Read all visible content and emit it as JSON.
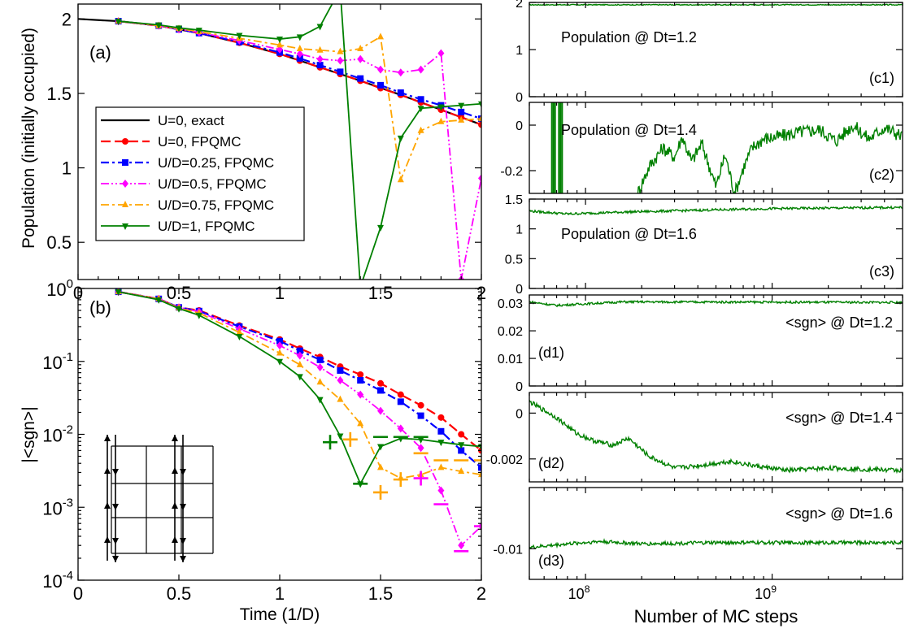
{
  "colors": {
    "exact": "#000000",
    "u0": "#ff0000",
    "u025": "#0000ff",
    "u05": "#ff00ff",
    "u075": "#ffa500",
    "u1": "#008000",
    "trace": "#008000"
  },
  "chart_data": [
    {
      "id": "a",
      "type": "line",
      "panel_label": "(a)",
      "ylabel": "Population (initially occupied)",
      "xlabel": "",
      "xlim": [
        0,
        2
      ],
      "ylim": [
        0.25,
        2.1
      ],
      "xticks": [
        "0",
        "0.5",
        "1",
        "1.5",
        "2"
      ],
      "yticks": [
        "0.5",
        "1",
        "1.5",
        "2"
      ],
      "legend_position": "left-middle",
      "legend": [
        {
          "label": "U=0, exact",
          "series": "exact"
        },
        {
          "label": "U=0, FPQMC",
          "series": "u0"
        },
        {
          "label": "U/D=0.25, FPQMC",
          "series": "u025"
        },
        {
          "label": "U/D=0.5, FPQMC",
          "series": "u05"
        },
        {
          "label": "U/D=0.75, FPQMC",
          "series": "u075"
        },
        {
          "label": "U/D=1, FPQMC",
          "series": "u1"
        }
      ],
      "series": [
        {
          "key": "exact",
          "x": [
            0,
            0.2,
            0.4,
            0.6,
            0.8,
            1.0,
            1.2,
            1.4,
            1.6,
            1.8,
            2.0
          ],
          "y": [
            2.0,
            1.985,
            1.955,
            1.905,
            1.84,
            1.765,
            1.675,
            1.585,
            1.49,
            1.39,
            1.29
          ]
        },
        {
          "key": "u0",
          "x": [
            0.2,
            0.4,
            0.5,
            0.6,
            0.8,
            1.0,
            1.1,
            1.2,
            1.3,
            1.4,
            1.5,
            1.6,
            1.7,
            1.8,
            1.9,
            2.0
          ],
          "y": [
            1.985,
            1.955,
            1.93,
            1.905,
            1.84,
            1.765,
            1.72,
            1.675,
            1.63,
            1.585,
            1.535,
            1.49,
            1.44,
            1.39,
            1.34,
            1.29
          ]
        },
        {
          "key": "u025",
          "x": [
            0.2,
            0.4,
            0.5,
            0.6,
            0.8,
            1.0,
            1.1,
            1.2,
            1.3,
            1.4,
            1.5,
            1.6,
            1.7,
            1.8,
            1.9,
            2.0
          ],
          "y": [
            1.985,
            1.955,
            1.93,
            1.905,
            1.845,
            1.775,
            1.735,
            1.69,
            1.645,
            1.6,
            1.555,
            1.505,
            1.46,
            1.42,
            1.375,
            1.33
          ]
        },
        {
          "key": "u05",
          "x": [
            0.2,
            0.4,
            0.5,
            0.6,
            0.8,
            1.0,
            1.1,
            1.2,
            1.3,
            1.4,
            1.5,
            1.6,
            1.7,
            1.8,
            1.9,
            2.0
          ],
          "y": [
            1.985,
            1.955,
            1.93,
            1.91,
            1.855,
            1.795,
            1.765,
            1.73,
            1.72,
            1.73,
            1.66,
            1.64,
            1.66,
            1.77,
            0.25,
            0.93
          ]
        },
        {
          "key": "u075",
          "x": [
            0.2,
            0.4,
            0.5,
            0.6,
            0.8,
            1.0,
            1.1,
            1.2,
            1.3,
            1.4,
            1.5,
            1.6,
            1.7,
            1.8,
            1.9,
            2.0
          ],
          "y": [
            1.985,
            1.955,
            1.935,
            1.915,
            1.87,
            1.825,
            1.8,
            1.79,
            1.78,
            1.8,
            1.88,
            0.92,
            1.25,
            1.31,
            1.32,
            1.33
          ]
        },
        {
          "key": "u1",
          "x": [
            0.2,
            0.4,
            0.5,
            0.6,
            0.8,
            1.0,
            1.1,
            1.2,
            1.3,
            1.4,
            1.5,
            1.6,
            1.7,
            1.8,
            1.9,
            2.0
          ],
          "y": [
            1.985,
            1.96,
            1.94,
            1.925,
            1.89,
            1.865,
            1.88,
            1.95,
            2.2,
            0.2,
            0.6,
            1.2,
            1.4,
            1.41,
            1.42,
            1.43
          ]
        }
      ]
    },
    {
      "id": "b",
      "type": "line",
      "panel_label": "(b)",
      "ylabel": "|<sgn>|",
      "xlabel": "Time (1/D)",
      "xlim": [
        0,
        2
      ],
      "ylim_log10": [
        -4,
        0
      ],
      "xticks": [
        "0",
        "0.5",
        "1",
        "1.5",
        "2"
      ],
      "yticks": [
        {
          "base": "10",
          "exp": "-4"
        },
        {
          "base": "10",
          "exp": "-3"
        },
        {
          "base": "10",
          "exp": "-2"
        },
        {
          "base": "10",
          "exp": "-1"
        },
        {
          "base": "10",
          "exp": "0"
        }
      ],
      "series": [
        {
          "key": "u0",
          "x": [
            0.2,
            0.4,
            0.5,
            0.6,
            0.8,
            1.0,
            1.1,
            1.2,
            1.3,
            1.4,
            1.5,
            1.6,
            1.7,
            1.8,
            1.9,
            2.0
          ],
          "y": [
            0.9,
            0.72,
            0.55,
            0.5,
            0.31,
            0.2,
            0.15,
            0.115,
            0.085,
            0.066,
            0.05,
            0.035,
            0.025,
            0.017,
            0.01,
            0.006
          ]
        },
        {
          "key": "u025",
          "x": [
            0.2,
            0.4,
            0.5,
            0.6,
            0.8,
            1.0,
            1.1,
            1.2,
            1.3,
            1.4,
            1.5,
            1.6,
            1.7,
            1.8,
            1.9,
            2.0
          ],
          "y": [
            0.9,
            0.72,
            0.55,
            0.49,
            0.3,
            0.19,
            0.14,
            0.105,
            0.075,
            0.055,
            0.04,
            0.028,
            0.018,
            0.011,
            0.006,
            0.0035
          ]
        },
        {
          "key": "u05",
          "x": [
            0.2,
            0.4,
            0.5,
            0.6,
            0.8,
            1.0,
            1.1,
            1.2,
            1.3,
            1.4,
            1.5,
            1.6,
            1.7,
            1.8,
            1.9,
            2.0
          ],
          "y": [
            0.9,
            0.72,
            0.55,
            0.48,
            0.28,
            0.165,
            0.12,
            0.083,
            0.055,
            0.035,
            0.021,
            0.012,
            0.0065,
            0.0017,
            0.0003,
            0.00055
          ]
        },
        {
          "key": "u075",
          "x": [
            0.2,
            0.4,
            0.5,
            0.6,
            0.8,
            1.0,
            1.1,
            1.2,
            1.3,
            1.4,
            1.5,
            1.6,
            1.7,
            1.8,
            1.9,
            2.0
          ],
          "y": [
            0.9,
            0.72,
            0.54,
            0.46,
            0.25,
            0.13,
            0.09,
            0.052,
            0.03,
            0.014,
            0.0035,
            0.0025,
            0.0028,
            0.0035,
            0.0031,
            0.0028
          ]
        },
        {
          "key": "u1",
          "x": [
            0.2,
            0.4,
            0.5,
            0.6,
            0.8,
            1.0,
            1.1,
            1.2,
            1.3,
            1.4,
            1.5,
            1.6,
            1.7,
            1.8,
            1.9,
            2.0
          ],
          "y": [
            0.9,
            0.7,
            0.53,
            0.43,
            0.22,
            0.1,
            0.062,
            0.03,
            0.0095,
            0.0021,
            0.0068,
            0.0088,
            0.0085,
            0.0078,
            0.0072,
            0.0068
          ]
        }
      ],
      "sign_markers": [
        {
          "sign": "+",
          "x": 1.25,
          "y": 0.0078,
          "series": "u1"
        },
        {
          "sign": "-",
          "x": 1.4,
          "y": 0.0021,
          "series": "u1"
        },
        {
          "sign": "-",
          "x": 1.5,
          "y": 0.0092,
          "series": "u1"
        },
        {
          "sign": "-",
          "x": 1.6,
          "y": 0.0092,
          "series": "u1"
        },
        {
          "sign": "-",
          "x": 1.7,
          "y": 0.0092,
          "series": "u1"
        },
        {
          "sign": "+",
          "x": 1.35,
          "y": 0.0085,
          "series": "u075"
        },
        {
          "sign": "+",
          "x": 1.5,
          "y": 0.0016,
          "series": "u075"
        },
        {
          "sign": "+",
          "x": 1.6,
          "y": 0.0024,
          "series": "u075"
        },
        {
          "sign": "-",
          "x": 1.7,
          "y": 0.0055,
          "series": "u075"
        },
        {
          "sign": "-",
          "x": 1.8,
          "y": 0.0044,
          "series": "u075"
        },
        {
          "sign": "-",
          "x": 1.9,
          "y": 0.0044,
          "series": "u075"
        },
        {
          "sign": "-",
          "x": 2.0,
          "y": 0.0044,
          "series": "u075"
        },
        {
          "sign": "+",
          "x": 1.7,
          "y": 0.0025,
          "series": "u05"
        },
        {
          "sign": "-",
          "x": 1.8,
          "y": 0.0011,
          "series": "u05"
        },
        {
          "sign": "-",
          "x": 1.9,
          "y": 0.00025,
          "series": "u05"
        },
        {
          "sign": "-",
          "x": 2.0,
          "y": 0.00055,
          "series": "u05"
        }
      ]
    },
    {
      "id": "c1",
      "type": "line",
      "panel_label": "(c1)",
      "annotation": "Population @ Dt=1.2",
      "ylim": [
        0,
        2
      ],
      "yticks": [
        "0",
        "1",
        "2"
      ],
      "xscale": "log",
      "xlim": [
        50000000,
        5000000000
      ],
      "trace": {
        "base": 1.95,
        "noise": 0.01,
        "segments": []
      }
    },
    {
      "id": "c2",
      "type": "line",
      "panel_label": "(c2)",
      "annotation": "Population @ Dt=1.4",
      "ylim": [
        -0.3,
        0.1
      ],
      "yticks": [
        "0",
        "-0.2"
      ],
      "xscale": "log",
      "xlim": [
        50000000,
        5000000000
      ],
      "trace": {
        "start": 190000000,
        "points": [
          [
            190000000,
            -0.3
          ],
          [
            220000000,
            -0.18
          ],
          [
            260000000,
            -0.1
          ],
          [
            300000000,
            -0.14
          ],
          [
            330000000,
            -0.05
          ],
          [
            370000000,
            -0.16
          ],
          [
            420000000,
            -0.08
          ],
          [
            500000000,
            -0.27
          ],
          [
            560000000,
            -0.13
          ],
          [
            630000000,
            -0.3
          ],
          [
            700000000,
            -0.19
          ],
          [
            780000000,
            -0.1
          ],
          [
            900000000,
            -0.06
          ],
          [
            1100000000,
            -0.05
          ],
          [
            1400000000,
            -0.03
          ],
          [
            1800000000,
            -0.02
          ],
          [
            2200000000,
            -0.07
          ],
          [
            2700000000,
            0.0
          ],
          [
            3300000000,
            -0.06
          ],
          [
            4000000000,
            -0.01
          ],
          [
            5000000000,
            -0.05
          ]
        ],
        "noise": 0.03,
        "spikes": [
          [
            66000000,
            -0.3,
            0.1
          ],
          [
            72000000,
            -0.3,
            0.1
          ]
        ]
      }
    },
    {
      "id": "c3",
      "type": "line",
      "panel_label": "(c3)",
      "annotation": "Population @ Dt=1.6",
      "ylim": [
        0,
        1.5
      ],
      "yticks": [
        "0",
        "0.5",
        "1",
        "1.5"
      ],
      "xscale": "log",
      "xlim": [
        50000000,
        5000000000
      ],
      "trace": {
        "points": [
          [
            50000000,
            1.3
          ],
          [
            80000000,
            1.25
          ],
          [
            150000000,
            1.28
          ],
          [
            500000000,
            1.32
          ],
          [
            1000000000,
            1.34
          ],
          [
            5000000000,
            1.36
          ]
        ],
        "noise": 0.02
      }
    },
    {
      "id": "d1",
      "type": "line",
      "panel_label": "(d1)",
      "annotation": "<sgn> @ Dt=1.2",
      "ylim": [
        0,
        0.033
      ],
      "yticks": [
        "0",
        "0.01",
        "0.02",
        "0.03"
      ],
      "xscale": "log",
      "xlim": [
        50000000,
        5000000000
      ],
      "trace": {
        "points": [
          [
            50000000,
            0.0305
          ],
          [
            70000000,
            0.0292
          ],
          [
            100000000,
            0.0298
          ],
          [
            160000000,
            0.0305
          ],
          [
            5000000000,
            0.0303
          ]
        ],
        "noise": 0.0004
      }
    },
    {
      "id": "d2",
      "type": "line",
      "panel_label": "(d2)",
      "annotation": "<sgn> @ Dt=1.4",
      "ylim": [
        -0.003,
        0.0009
      ],
      "yticks": [
        "0",
        "-0.002"
      ],
      "xscale": "log",
      "xlim": [
        50000000,
        5000000000
      ],
      "trace": {
        "points": [
          [
            50000000,
            0.0005
          ],
          [
            70000000,
            -0.0002
          ],
          [
            90000000,
            -0.0009
          ],
          [
            110000000,
            -0.0012
          ],
          [
            140000000,
            -0.0014
          ],
          [
            170000000,
            -0.0011
          ],
          [
            220000000,
            -0.0019
          ],
          [
            300000000,
            -0.0024
          ],
          [
            400000000,
            -0.0023
          ],
          [
            600000000,
            -0.0021
          ],
          [
            800000000,
            -0.0023
          ],
          [
            1200000000,
            -0.0025
          ],
          [
            2000000000,
            -0.0024
          ],
          [
            5000000000,
            -0.0025
          ]
        ],
        "noise": 0.0001
      }
    },
    {
      "id": "d3",
      "type": "line",
      "panel_label": "(d3)",
      "annotation": "<sgn> @ Dt=1.6",
      "ylim": [
        -0.015,
        0.0
      ],
      "yticks": [
        "-0.01"
      ],
      "xscale": "log",
      "xlim": [
        50000000,
        5000000000
      ],
      "xticks": [
        {
          "base": "10",
          "exp": "8",
          "value": 100000000
        },
        {
          "base": "10",
          "exp": "9",
          "value": 1000000000
        }
      ],
      "xlabel": "Number of MC steps",
      "trace": {
        "points": [
          [
            50000000,
            -0.0098
          ],
          [
            80000000,
            -0.0092
          ],
          [
            120000000,
            -0.0088
          ],
          [
            200000000,
            -0.0092
          ],
          [
            500000000,
            -0.009
          ],
          [
            5000000000,
            -0.009
          ]
        ],
        "noise": 0.0003
      }
    }
  ]
}
